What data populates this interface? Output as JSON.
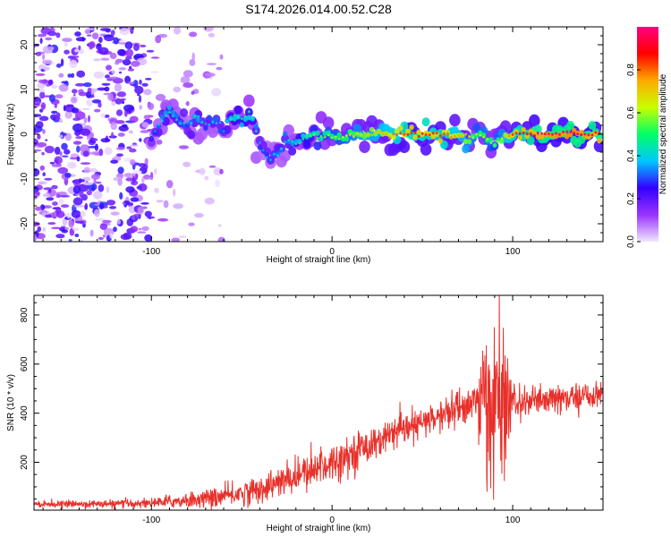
{
  "title": "S174.2026.014.00.52.C28",
  "chart_data": [
    {
      "type": "heatmap",
      "name": "spectrogram",
      "xlabel": "Height of straight line (km)",
      "ylabel": "Frequency (Hz)",
      "xlim": [
        -165,
        150
      ],
      "ylim": [
        -24,
        24
      ],
      "x_ticks": [
        -100,
        0,
        100
      ],
      "y_ticks": [
        20,
        10,
        0,
        -10,
        -20
      ],
      "colorbar": {
        "label": "Normalized spectral amplitude",
        "range": [
          0,
          1
        ],
        "ticks": [
          0.0,
          0.2,
          0.4,
          0.6,
          0.8
        ],
        "tick_labels": [
          "0.0",
          "0.2",
          "0.4",
          "0.6",
          "0.8"
        ],
        "colors": [
          "#f0e6ff",
          "#9a33ff",
          "#3300ff",
          "#00c8ff",
          "#00ff66",
          "#c8ff00",
          "#ffaa00",
          "#ff0000",
          "#ff0080"
        ]
      },
      "ridge": {
        "x": [
          -100,
          -95,
          -90,
          -85,
          -80,
          -75,
          -70,
          -65,
          -60,
          -55,
          -50,
          -45,
          -40,
          -35,
          -30,
          -25,
          -20,
          -15,
          -10,
          -5,
          0,
          5,
          10,
          20,
          30,
          40,
          50,
          60,
          70,
          75,
          80,
          85,
          90,
          95,
          100,
          110,
          120,
          130,
          140,
          148
        ],
        "freq": [
          -1,
          3,
          5,
          3,
          2,
          4,
          2,
          3,
          1,
          4,
          3,
          5,
          -2,
          -6,
          -4,
          -1,
          -2,
          -1,
          0,
          -0.5,
          0,
          -1,
          0,
          0,
          0,
          0,
          0,
          0,
          -0.5,
          -1,
          0,
          -1,
          -2,
          -1,
          0,
          0,
          0,
          0,
          0,
          0
        ],
        "amplitude": [
          0.3,
          0.4,
          0.45,
          0.4,
          0.35,
          0.45,
          0.35,
          0.4,
          0.35,
          0.5,
          0.45,
          0.5,
          0.35,
          0.35,
          0.4,
          0.4,
          0.45,
          0.5,
          0.55,
          0.55,
          0.6,
          0.6,
          0.65,
          0.7,
          0.75,
          0.85,
          0.85,
          0.85,
          0.75,
          0.7,
          0.6,
          0.65,
          0.55,
          0.7,
          0.85,
          0.9,
          0.95,
          0.95,
          0.95,
          0.9
        ]
      }
    },
    {
      "type": "line",
      "name": "snr",
      "xlabel": "Height of straight line (km)",
      "ylabel": "SNR (10 * v/v)",
      "xlim": [
        -165,
        150
      ],
      "ylim": [
        5,
        880
      ],
      "x_ticks": [
        -100,
        0,
        100
      ],
      "y_ticks": [
        200,
        400,
        600,
        800
      ],
      "color": "#e8302a",
      "trend": {
        "x": [
          -165,
          -120,
          -100,
          -80,
          -60,
          -40,
          -20,
          0,
          20,
          40,
          60,
          70,
          80,
          90,
          100,
          120,
          140,
          150
        ],
        "y": [
          30,
          30,
          35,
          45,
          60,
          90,
          140,
          200,
          270,
          330,
          390,
          420,
          450,
          440,
          440,
          450,
          470,
          480
        ]
      },
      "noise": {
        "x": [
          -165,
          -100,
          -50,
          0,
          50,
          80,
          85,
          95,
          100,
          150
        ],
        "sd": [
          6,
          10,
          25,
          40,
          30,
          45,
          180,
          180,
          35,
          25
        ]
      },
      "samples_per_km": 5
    }
  ]
}
